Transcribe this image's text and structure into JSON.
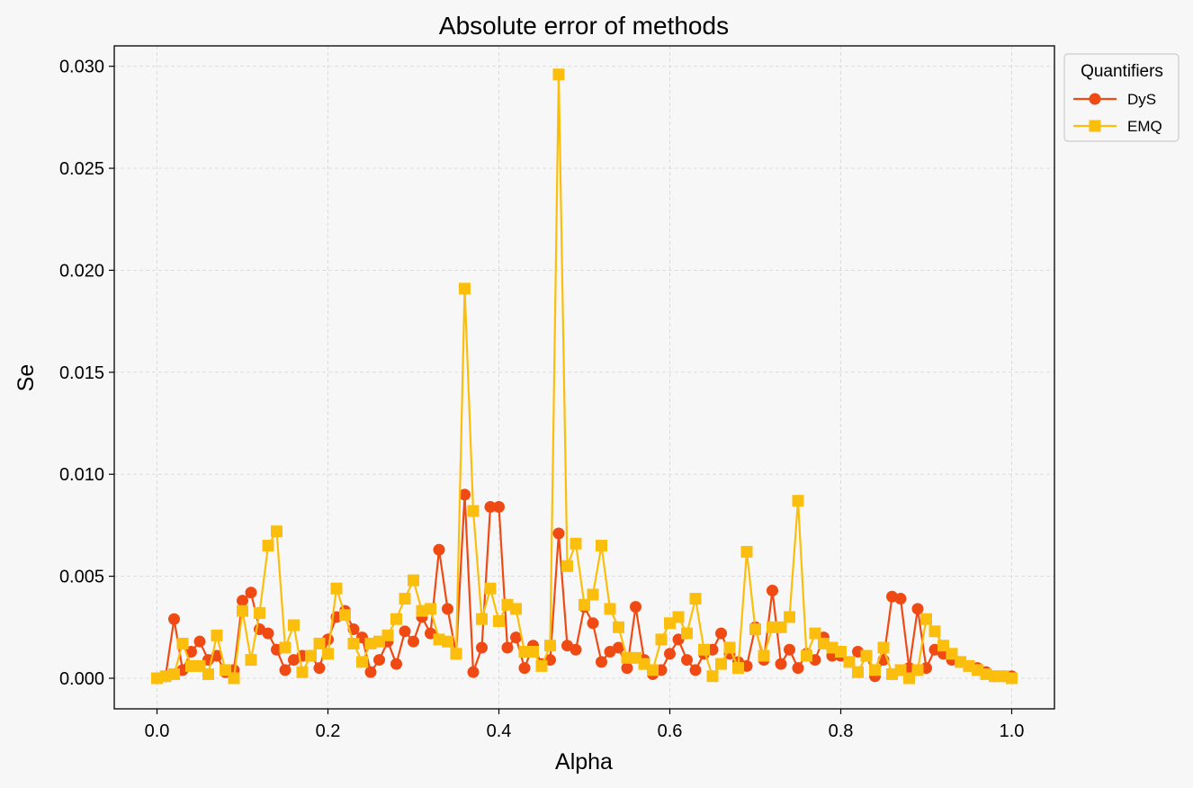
{
  "chart_data": {
    "type": "line",
    "title": "Absolute error of methods",
    "xlabel": "Alpha",
    "ylabel": "Se",
    "xlim": [
      -0.05,
      1.05
    ],
    "ylim": [
      -0.0015,
      0.031
    ],
    "xticks": [
      0.0,
      0.2,
      0.4,
      0.6,
      0.8,
      1.0
    ],
    "xtick_labels": [
      "0.0",
      "0.2",
      "0.4",
      "0.6",
      "0.8",
      "1.0"
    ],
    "yticks": [
      0.0,
      0.005,
      0.01,
      0.015,
      0.02,
      0.025,
      0.03
    ],
    "ytick_labels": [
      "0.000",
      "0.005",
      "0.010",
      "0.015",
      "0.020",
      "0.025",
      "0.030"
    ],
    "grid": true,
    "legend": {
      "title": "Quantifiers",
      "placement": "outside-top-right"
    },
    "x": [
      0.0,
      0.01,
      0.02,
      0.03,
      0.04,
      0.05,
      0.06,
      0.07,
      0.08,
      0.09,
      0.1,
      0.11,
      0.12,
      0.13,
      0.14,
      0.15,
      0.16,
      0.17,
      0.18,
      0.19,
      0.2,
      0.21,
      0.22,
      0.23,
      0.24,
      0.25,
      0.26,
      0.27,
      0.28,
      0.29,
      0.3,
      0.31,
      0.32,
      0.33,
      0.34,
      0.35,
      0.36,
      0.37,
      0.38,
      0.39,
      0.4,
      0.41,
      0.42,
      0.43,
      0.44,
      0.45,
      0.46,
      0.47,
      0.48,
      0.49,
      0.5,
      0.51,
      0.52,
      0.53,
      0.54,
      0.55,
      0.56,
      0.57,
      0.58,
      0.59,
      0.6,
      0.61,
      0.62,
      0.63,
      0.64,
      0.65,
      0.66,
      0.67,
      0.68,
      0.69,
      0.7,
      0.71,
      0.72,
      0.73,
      0.74,
      0.75,
      0.76,
      0.77,
      0.78,
      0.79,
      0.8,
      0.81,
      0.82,
      0.83,
      0.84,
      0.85,
      0.86,
      0.87,
      0.88,
      0.89,
      0.9,
      0.91,
      0.92,
      0.93,
      0.94,
      0.95,
      0.96,
      0.97,
      0.98,
      0.99,
      1.0
    ],
    "series": [
      {
        "name": "DyS",
        "color": "#f04a14",
        "marker": "circle",
        "values": [
          0.0,
          0.0001,
          0.0029,
          0.0004,
          0.0013,
          0.0018,
          0.0009,
          0.0011,
          0.0003,
          0.0004,
          0.0038,
          0.0042,
          0.0024,
          0.0022,
          0.0014,
          0.0004,
          0.0009,
          0.0011,
          0.0011,
          0.0005,
          0.0019,
          0.003,
          0.0033,
          0.0024,
          0.002,
          0.0003,
          0.0009,
          0.0018,
          0.0007,
          0.0023,
          0.0018,
          0.003,
          0.0022,
          0.0063,
          0.0034,
          0.0012,
          0.009,
          0.0003,
          0.0015,
          0.0084,
          0.0084,
          0.0015,
          0.002,
          0.0005,
          0.0016,
          0.0007,
          0.0009,
          0.0071,
          0.0016,
          0.0014,
          0.0035,
          0.0027,
          0.0008,
          0.0013,
          0.0015,
          0.0005,
          0.0035,
          0.0009,
          0.0002,
          0.0004,
          0.0012,
          0.0019,
          0.0009,
          0.0004,
          0.0012,
          0.0014,
          0.0022,
          0.0012,
          0.0008,
          0.0006,
          0.0025,
          0.0009,
          0.0043,
          0.0007,
          0.0014,
          0.0005,
          0.0012,
          0.0009,
          0.002,
          0.0011,
          0.0011,
          0.0008,
          0.0013,
          0.0011,
          0.0001,
          0.0009,
          0.004,
          0.0039,
          0.0005,
          0.0034,
          0.0005,
          0.0014,
          0.0012,
          0.0009,
          0.0008,
          0.0006,
          0.0005,
          0.0003,
          0.0001,
          0.0001,
          0.0001
        ]
      },
      {
        "name": "EMQ",
        "color": "#fbbe0c",
        "marker": "square",
        "values": [
          0.0,
          0.0001,
          0.0002,
          0.0017,
          0.0006,
          0.0006,
          0.0002,
          0.0021,
          0.0004,
          0.0,
          0.0033,
          0.0009,
          0.0032,
          0.0065,
          0.0072,
          0.0015,
          0.0026,
          0.0003,
          0.0011,
          0.0017,
          0.0012,
          0.0044,
          0.0031,
          0.0017,
          0.0008,
          0.0017,
          0.0018,
          0.0021,
          0.0029,
          0.0039,
          0.0048,
          0.0033,
          0.0034,
          0.0019,
          0.0018,
          0.0012,
          0.0191,
          0.0082,
          0.0029,
          0.0044,
          0.0028,
          0.0036,
          0.0034,
          0.0013,
          0.0013,
          0.0006,
          0.0016,
          0.0296,
          0.0055,
          0.0066,
          0.0036,
          0.0041,
          0.0065,
          0.0034,
          0.0025,
          0.001,
          0.001,
          0.0007,
          0.0004,
          0.0019,
          0.0027,
          0.003,
          0.0022,
          0.0039,
          0.0014,
          0.0001,
          0.0007,
          0.0015,
          0.0005,
          0.0062,
          0.0024,
          0.0011,
          0.0025,
          0.0025,
          0.003,
          0.0087,
          0.0011,
          0.0022,
          0.0017,
          0.0015,
          0.0013,
          0.0008,
          0.0003,
          0.0011,
          0.0004,
          0.0015,
          0.0002,
          0.0004,
          0.0,
          0.0004,
          0.0029,
          0.0023,
          0.0016,
          0.0012,
          0.0008,
          0.0006,
          0.0004,
          0.0002,
          0.0001,
          0.0001,
          0.0
        ]
      }
    ]
  }
}
